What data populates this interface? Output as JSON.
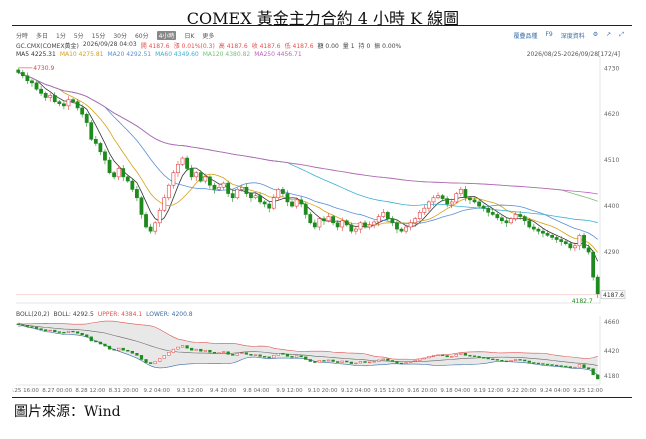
{
  "title": "COMEX 黃金主力合約 4 小時 K 線圖",
  "source": "圖片來源：Wind",
  "tabs": [
    "分時",
    "多日",
    "1分",
    "5分",
    "15分",
    "30分",
    "60分",
    "4小時",
    "日K",
    "更多"
  ],
  "active_tab": 7,
  "tools": [
    "覆疊品種",
    "F9",
    "深度資料",
    "⚙",
    "↗",
    "⤢"
  ],
  "ohlc": [
    {
      "t": "GC.CMX(COMEX黃金)",
      "c": "#444"
    },
    {
      "t": "2026/09/28 04:03",
      "c": "#444"
    },
    {
      "t": "開 4187.6",
      "c": "#e05050"
    },
    {
      "t": "漲 0.01%(0.3)",
      "c": "#e05050"
    },
    {
      "t": "高 4187.6",
      "c": "#e05050"
    },
    {
      "t": "收 4187.6",
      "c": "#e05050"
    },
    {
      "t": "低 4187.6",
      "c": "#e05050"
    },
    {
      "t": "額 0.00",
      "c": "#444"
    },
    {
      "t": "量 1",
      "c": "#444"
    },
    {
      "t": "持 0",
      "c": "#444"
    },
    {
      "t": "振 0.00%",
      "c": "#444"
    }
  ],
  "ma": [
    {
      "t": "MA5 4225.31",
      "c": "#333"
    },
    {
      "t": "MA10 4275.81",
      "c": "#d4a017"
    },
    {
      "t": "MA20 4292.51",
      "c": "#5b8fd8"
    },
    {
      "t": "MA60 4349.60",
      "c": "#3bb0d0"
    },
    {
      "t": "MA120 4380.82",
      "c": "#7ac07a"
    },
    {
      "t": "MA250 4456.71",
      "c": "#c060c0"
    }
  ],
  "range": "2026/08/25-2026/09/28[172/4]",
  "boll": [
    {
      "t": "BOLL(20,2)",
      "c": "#444"
    },
    {
      "t": "BOLL: 4292.5",
      "c": "#444"
    },
    {
      "t": "UPPER: 4384.1",
      "c": "#e05050"
    },
    {
      "t": "LOWER: 4200.8",
      "c": "#3a6ea5"
    }
  ],
  "high_marker": "4730.9",
  "low_marker": "4182.7",
  "last_price": "4187.6",
  "price_ticks": [
    "4730",
    "4620",
    "4510",
    "4400",
    "4290"
  ],
  "boll_ticks": [
    "4660",
    "4420",
    "4180"
  ],
  "x_ticks": [
    "8.25 16:00",
    "8.27 00:00",
    "8.28 12:00",
    "8.31 20:00",
    "9.2 04:00",
    "9.3 12:00",
    "9.4 20:00",
    "9.8 04:00",
    "9.9 12:00",
    "9.10 20:00",
    "9.12 04:00",
    "9.15 12:00",
    "9.16 20:00",
    "9.18 04:00",
    "9.19 12:00",
    "9.22 20:00",
    "9.24 04:00",
    "9.25 12:00"
  ],
  "colors": {
    "up": "#e04040",
    "down": "#1e8a1e"
  },
  "chart_data": {
    "type": "candlestick",
    "price_range": [
      4180,
      4745
    ],
    "closes": [
      4720,
      4712,
      4700,
      4695,
      4680,
      4670,
      4660,
      4665,
      4650,
      4645,
      4640,
      4655,
      4650,
      4635,
      4620,
      4600,
      4560,
      4550,
      4530,
      4510,
      4480,
      4470,
      4490,
      4470,
      4460,
      4440,
      4420,
      4380,
      4350,
      4340,
      4360,
      4390,
      4420,
      4450,
      4480,
      4500,
      4515,
      4490,
      4470,
      4480,
      4460,
      4470,
      4450,
      4440,
      4445,
      4455,
      4430,
      4420,
      4440,
      4445,
      4430,
      4420,
      4425,
      4410,
      4405,
      4395,
      4420,
      4440,
      4430,
      4410,
      4400,
      4415,
      4405,
      4380,
      4360,
      4350,
      4370,
      4365,
      4375,
      4360,
      4350,
      4365,
      4355,
      4340,
      4345,
      4360,
      4350,
      4355,
      4362,
      4375,
      4385,
      4370,
      4360,
      4345,
      4340,
      4350,
      4360,
      4370,
      4385,
      4395,
      4410,
      4420,
      4425,
      4418,
      4405,
      4410,
      4430,
      4440,
      4420,
      4415,
      4410,
      4400,
      4395,
      4385,
      4380,
      4372,
      4365,
      4360,
      4370,
      4380,
      4375,
      4365,
      4350,
      4345,
      4340,
      4335,
      4330,
      4325,
      4320,
      4315,
      4310,
      4300,
      4305,
      4330,
      4300,
      4290,
      4230,
      4190
    ]
  }
}
